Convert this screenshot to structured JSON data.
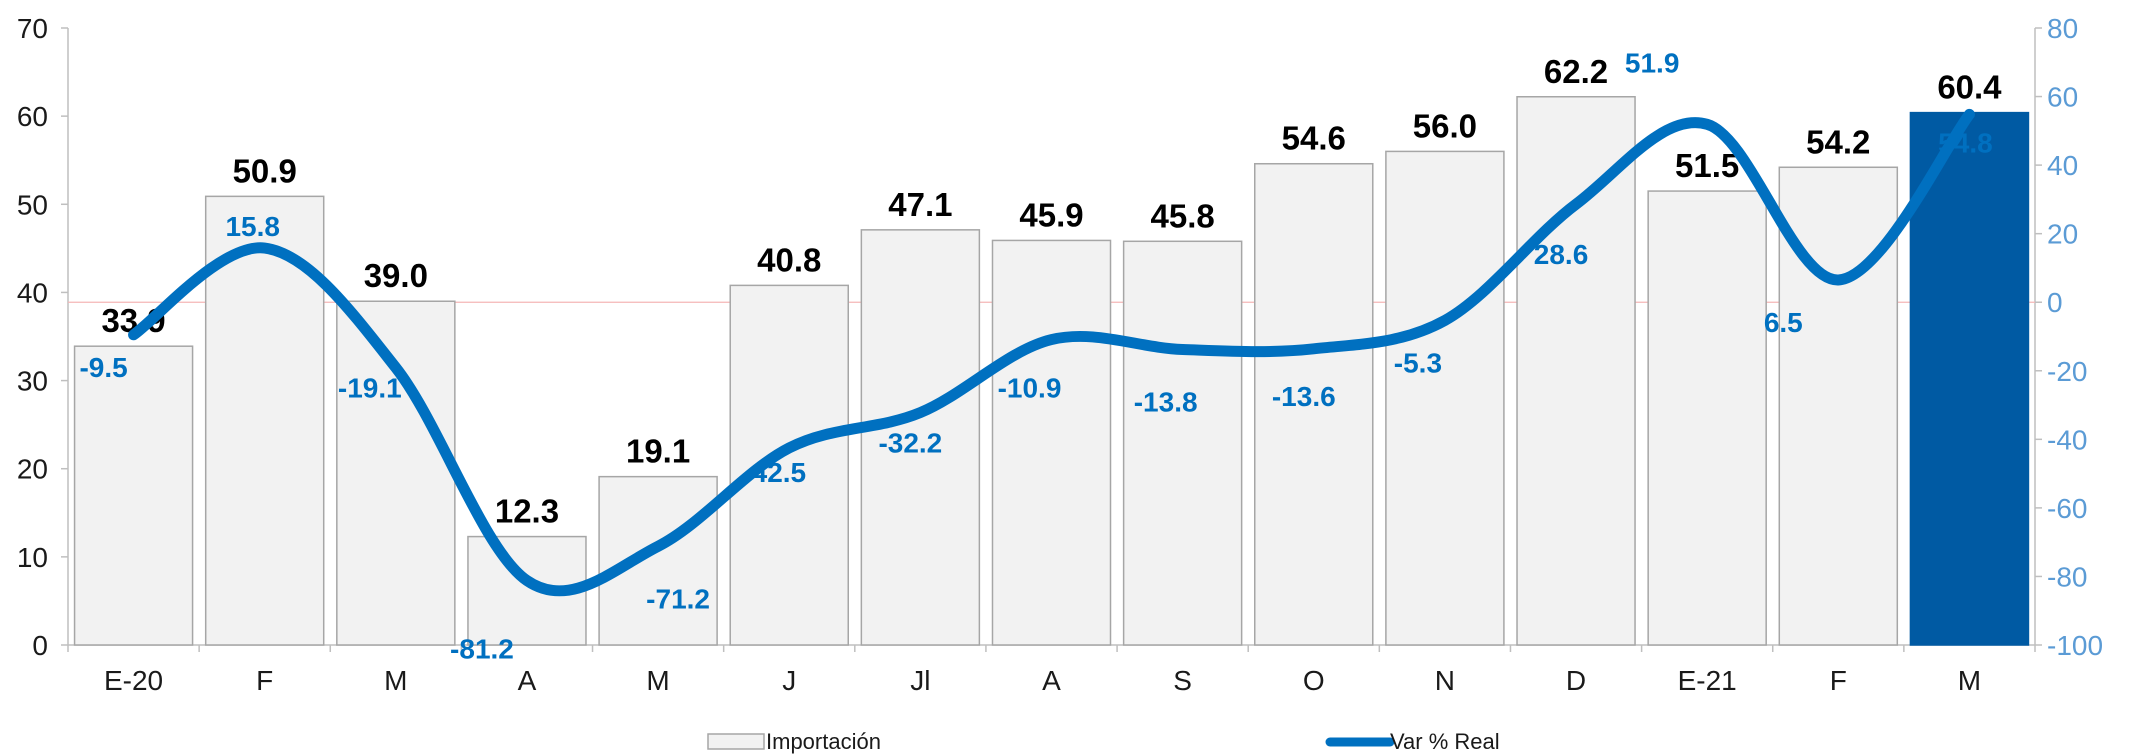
{
  "chart_data": {
    "type": "bar",
    "title": "",
    "xlabel": "",
    "ylabel": "",
    "categories": [
      "E-20",
      "F",
      "M",
      "A",
      "M",
      "J",
      "Jl",
      "A",
      "S",
      "O",
      "N",
      "D",
      "E-21",
      "F",
      "M"
    ],
    "ylim": [
      0,
      70
    ],
    "y_ticks": [
      0,
      10,
      20,
      30,
      40,
      50,
      60,
      70
    ],
    "y2lim": [
      -100,
      80
    ],
    "y2_ticks": [
      -100,
      -80,
      -60,
      -40,
      -20,
      0,
      20,
      40,
      60,
      80
    ],
    "grid": false,
    "legend_position": "bottom",
    "series": [
      {
        "name": "Importación",
        "type": "bar",
        "axis": "left",
        "values": [
          33.9,
          50.9,
          39.0,
          12.3,
          19.1,
          40.8,
          47.1,
          45.9,
          45.8,
          54.6,
          56.0,
          62.2,
          51.5,
          54.2,
          60.4
        ],
        "labels": [
          "33.9",
          "50.9",
          "39.0",
          "12.3",
          "19.1",
          "40.8",
          "47.1",
          "45.9",
          "45.8",
          "54.6",
          "56.0",
          "62.2",
          "51.5",
          "54.2",
          "60.4"
        ],
        "color": "#f2f2f2",
        "highlight_color": "#005aa3",
        "highlight_index": 14
      },
      {
        "name": "Var % Real",
        "type": "line",
        "axis": "right",
        "values": [
          -9.5,
          15.8,
          -19.1,
          -81.2,
          -71.2,
          -42.5,
          -32.2,
          -10.9,
          -13.8,
          -13.6,
          -5.3,
          28.6,
          51.9,
          6.5,
          54.8
        ],
        "labels": [
          "-9.5",
          "15.8",
          "-19.1",
          "-81.2",
          "-71.2",
          "-42.5",
          "-32.2",
          "-10.9",
          "-13.8",
          "-13.6",
          "-5.3",
          "28.6",
          "51.9",
          "6.5",
          "54.8"
        ],
        "color": "#0070c0"
      }
    ]
  }
}
